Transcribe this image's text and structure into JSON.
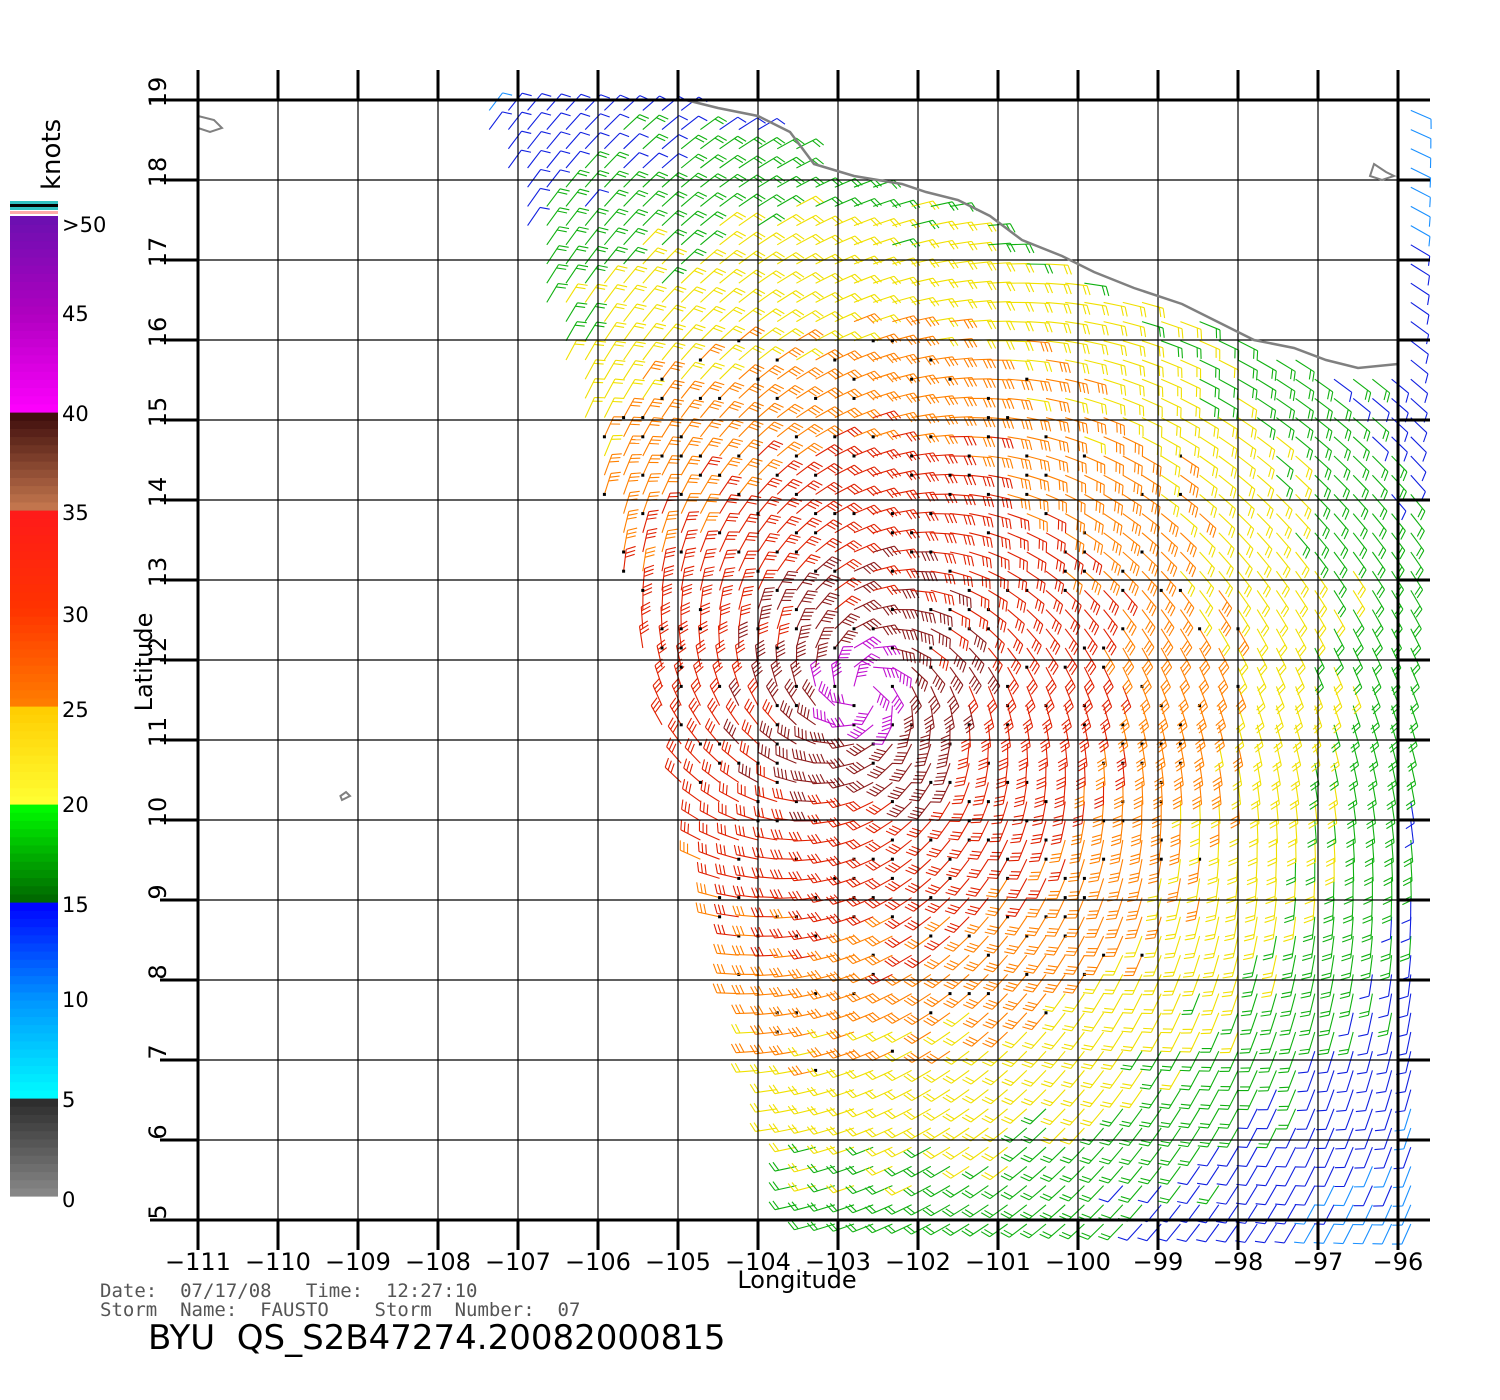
{
  "map": {
    "lon_range": [
      -111,
      -96
    ],
    "lat_range": [
      5,
      19
    ],
    "lon_ticks": [
      "−111",
      "−110",
      "−109",
      "−108",
      "−107",
      "−106",
      "−105",
      "−104",
      "−103",
      "−102",
      "−101",
      "−100",
      "−99",
      "−98",
      "−97",
      "−96"
    ],
    "lat_ticks": [
      "5",
      "6",
      "7",
      "8",
      "9",
      "10",
      "11",
      "12",
      "13",
      "14",
      "15",
      "16",
      "17",
      "18",
      "19"
    ],
    "xlabel": "Longitude",
    "ylabel": "Latitude",
    "grid": true,
    "coast_color": "#808080",
    "storm_center": {
      "lon": -102.7,
      "lat": 11.6
    },
    "swath_edge_west": [
      [
        -107.5,
        19
      ],
      [
        -106.8,
        17
      ],
      [
        -105.9,
        14
      ],
      [
        -105.3,
        11.5
      ],
      [
        -104.6,
        9
      ],
      [
        -103.9,
        6.5
      ],
      [
        -103.5,
        5
      ]
    ],
    "coastline": [
      [
        -104.9,
        19.0
      ],
      [
        -104.5,
        18.9
      ],
      [
        -104.0,
        18.8
      ],
      [
        -103.6,
        18.6
      ],
      [
        -103.3,
        18.2
      ],
      [
        -102.8,
        18.05
      ],
      [
        -102.2,
        17.95
      ],
      [
        -101.9,
        17.85
      ],
      [
        -101.5,
        17.75
      ],
      [
        -101.1,
        17.55
      ],
      [
        -100.7,
        17.25
      ],
      [
        -100.2,
        17.05
      ],
      [
        -99.8,
        16.85
      ],
      [
        -99.3,
        16.65
      ],
      [
        -98.7,
        16.45
      ],
      [
        -98.2,
        16.2
      ],
      [
        -97.8,
        16.0
      ],
      [
        -97.3,
        15.9
      ],
      [
        -96.9,
        15.75
      ],
      [
        -96.5,
        15.65
      ],
      [
        -96.0,
        15.7
      ]
    ],
    "islands": [
      {
        "name": "",
        "points": [
          [
            -111.0,
            18.8
          ],
          [
            -110.8,
            18.75
          ],
          [
            -110.7,
            18.65
          ],
          [
            -110.85,
            18.6
          ],
          [
            -111.0,
            18.65
          ]
        ]
      },
      {
        "name": "",
        "points": [
          [
            -109.2,
            10.25
          ],
          [
            -109.1,
            10.3
          ],
          [
            -109.15,
            10.35
          ],
          [
            -109.22,
            10.3
          ]
        ]
      },
      {
        "name": "",
        "points": [
          [
            -96.3,
            18.2
          ],
          [
            -96.15,
            18.1
          ],
          [
            -96.05,
            18.05
          ],
          [
            -96.2,
            18.0
          ],
          [
            -96.35,
            18.05
          ]
        ]
      }
    ]
  },
  "colorbar": {
    "unit_label": "knots",
    "labels": [
      ">50",
      "45",
      "40",
      "35",
      "30",
      "25",
      "20",
      "15",
      "10",
      "5",
      "0"
    ],
    "stops": [
      {
        "value": 0,
        "color": "#8a8a8a"
      },
      {
        "value": 5,
        "color": "#2a2a2a"
      },
      {
        "value": 5,
        "color": "#00ffff"
      },
      {
        "value": 10,
        "color": "#0096ff"
      },
      {
        "value": 15,
        "color": "#0000ff"
      },
      {
        "value": 15,
        "color": "#006400"
      },
      {
        "value": 20,
        "color": "#00ff00"
      },
      {
        "value": 20,
        "color": "#ffff33"
      },
      {
        "value": 25,
        "color": "#ffcc00"
      },
      {
        "value": 25,
        "color": "#ff7f00"
      },
      {
        "value": 30,
        "color": "#ff3300"
      },
      {
        "value": 35,
        "color": "#ff1a1a"
      },
      {
        "value": 35,
        "color": "#c87a50"
      },
      {
        "value": 40,
        "color": "#3a0a0a"
      },
      {
        "value": 40,
        "color": "#ff00ff"
      },
      {
        "value": 45,
        "color": "#b000c0"
      },
      {
        "value": 50,
        "color": "#6a10b0"
      }
    ]
  },
  "info": {
    "date_line": "Date:  07/17/08   Time:  12:27:10",
    "storm_line": "Storm  Name:  FAUSTO    Storm  Number:  07",
    "product": "BYU  QS_S2B47274.20082000815"
  }
}
